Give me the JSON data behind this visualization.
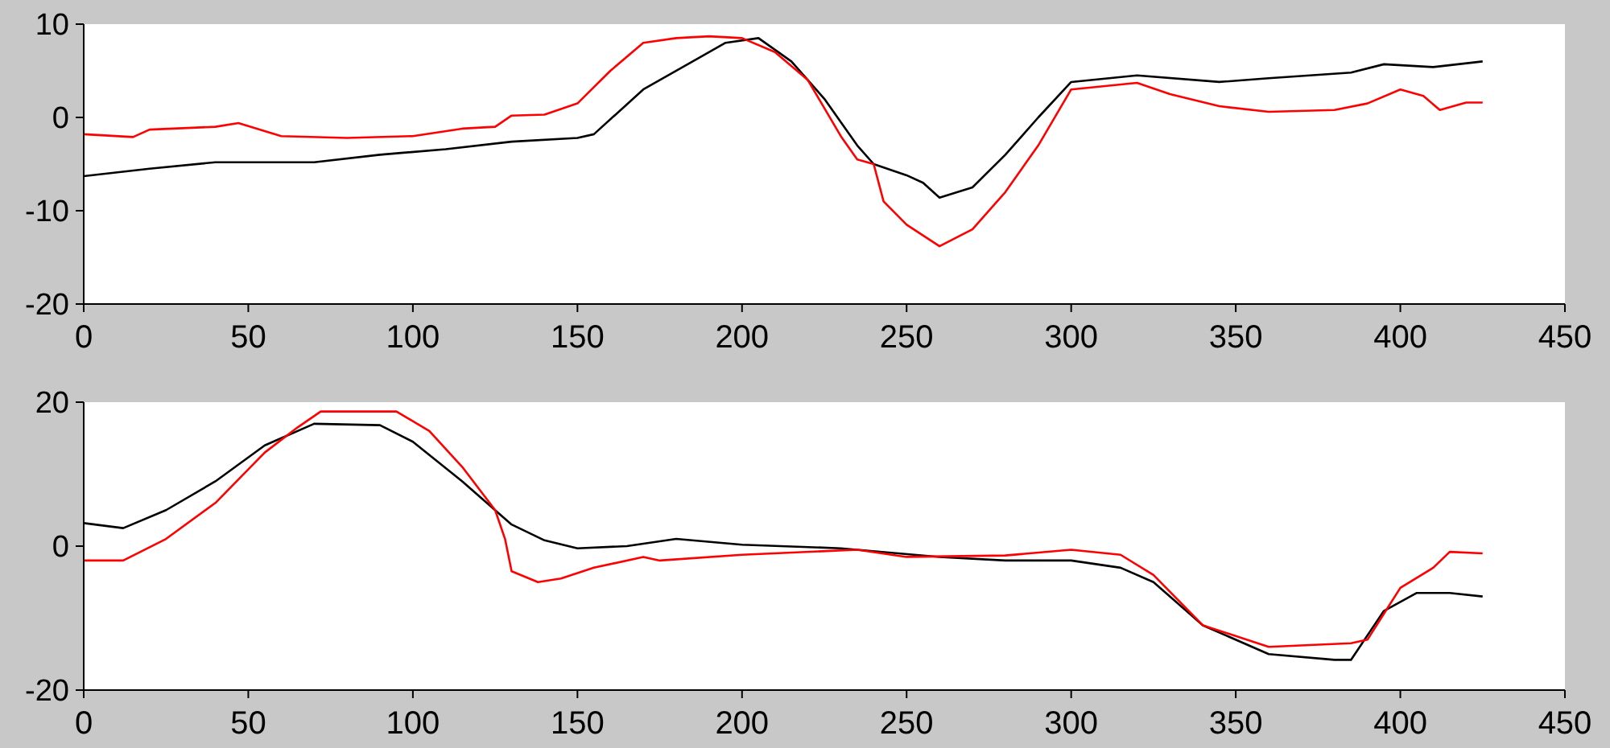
{
  "chart_data": [
    {
      "type": "line",
      "xlim": [
        0,
        450
      ],
      "xticks": [
        0,
        50,
        100,
        150,
        200,
        250,
        300,
        350,
        400,
        450
      ],
      "ylim": [
        -20,
        10
      ],
      "yticks": [
        -20,
        -10,
        0,
        10
      ],
      "grid": false,
      "legend": false,
      "marker": "none",
      "line_style": "solid",
      "series": [
        {
          "color": "#000000",
          "x": [
            0,
            20,
            40,
            70,
            90,
            110,
            130,
            150,
            155,
            170,
            185,
            195,
            205,
            215,
            225,
            235,
            240,
            250,
            255,
            260,
            270,
            280,
            290,
            300,
            320,
            345,
            360,
            385,
            395,
            410,
            425
          ],
          "values": [
            -6.3,
            -5.5,
            -4.8,
            -4.8,
            -4,
            -3.4,
            -2.6,
            -2.2,
            -1.8,
            3,
            6,
            8,
            8.5,
            6,
            2,
            -3,
            -5,
            -6.2,
            -7,
            -8.6,
            -7.5,
            -4,
            0,
            3.8,
            4.5,
            3.8,
            4.2,
            4.8,
            5.7,
            5.4,
            6
          ]
        },
        {
          "color": "#ff0000",
          "x": [
            0,
            15,
            20,
            40,
            47,
            60,
            80,
            100,
            115,
            125,
            130,
            140,
            150,
            160,
            170,
            180,
            190,
            200,
            210,
            220,
            230,
            235,
            240,
            243,
            250,
            260,
            270,
            280,
            290,
            300,
            320,
            330,
            345,
            360,
            380,
            390,
            400,
            407,
            412,
            420,
            425
          ],
          "values": [
            -1.8,
            -2.1,
            -1.3,
            -1,
            -0.6,
            -2,
            -2.2,
            -2,
            -1.2,
            -1,
            0.2,
            0.3,
            1.5,
            5,
            8,
            8.5,
            8.7,
            8.5,
            7,
            4,
            -2,
            -4.5,
            -5,
            -9,
            -11.5,
            -13.8,
            -12,
            -8,
            -3,
            3,
            3.7,
            2.5,
            1.2,
            0.6,
            0.8,
            1.5,
            3,
            2.3,
            0.8,
            1.6,
            1.6
          ]
        }
      ]
    },
    {
      "type": "line",
      "xlim": [
        0,
        450
      ],
      "xticks": [
        0,
        50,
        100,
        150,
        200,
        250,
        300,
        350,
        400,
        450
      ],
      "ylim": [
        -20,
        20
      ],
      "yticks": [
        -20,
        0,
        20
      ],
      "grid": false,
      "legend": false,
      "marker": "none",
      "line_style": "solid",
      "series": [
        {
          "color": "#000000",
          "x": [
            0,
            12,
            25,
            40,
            55,
            70,
            90,
            100,
            115,
            130,
            140,
            150,
            165,
            180,
            200,
            230,
            260,
            280,
            300,
            315,
            325,
            340,
            360,
            380,
            385,
            395,
            405,
            415,
            425
          ],
          "values": [
            3.2,
            2.5,
            5,
            9,
            14,
            17,
            16.8,
            14.5,
            9,
            3,
            0.8,
            -0.3,
            0,
            1,
            0.2,
            -0.3,
            -1.5,
            -2,
            -2,
            -3,
            -5,
            -11,
            -15,
            -15.8,
            -15.8,
            -9,
            -6.5,
            -6.5,
            -7
          ]
        },
        {
          "color": "#ff0000",
          "x": [
            0,
            12,
            25,
            40,
            55,
            65,
            72,
            95,
            105,
            115,
            125,
            128,
            130,
            138,
            145,
            155,
            170,
            175,
            200,
            235,
            250,
            280,
            300,
            315,
            325,
            340,
            360,
            385,
            390,
            400,
            410,
            415,
            425
          ],
          "values": [
            -2,
            -2,
            1,
            6,
            13,
            16.5,
            18.7,
            18.7,
            16,
            11,
            5,
            1,
            -3.5,
            -5,
            -4.5,
            -3,
            -1.5,
            -2,
            -1.2,
            -0.5,
            -1.5,
            -1.3,
            -0.5,
            -1.2,
            -4,
            -11,
            -14,
            -13.5,
            -13,
            -5.8,
            -3,
            -0.8,
            -1
          ]
        }
      ]
    }
  ]
}
